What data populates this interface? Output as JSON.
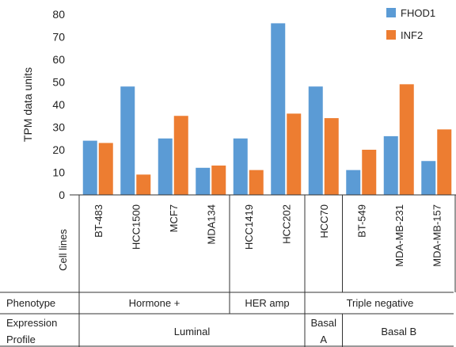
{
  "chart_data": {
    "type": "bar",
    "ylabel": "TPM data units",
    "ylim": [
      0,
      80
    ],
    "yticks": [
      0,
      10,
      20,
      30,
      40,
      50,
      60,
      70,
      80
    ],
    "grid": false,
    "legend_position": "top-right",
    "categories": [
      "BT-483",
      "HCC1500",
      "MCF7",
      "MDA134",
      "HCC1419",
      "HCC202",
      "HCC70",
      "BT-549",
      "MDA-MB-231",
      "MDA-MB-157"
    ],
    "series": [
      {
        "name": "FHOD1",
        "color": "#5B9BD5",
        "values": [
          24,
          48,
          25,
          12,
          25,
          76,
          48,
          11,
          26,
          15
        ]
      },
      {
        "name": "INF2",
        "color": "#ED7D31",
        "values": [
          23,
          9,
          35,
          13,
          11,
          36,
          34,
          20,
          49,
          29
        ]
      }
    ],
    "table": {
      "cell_lines_label": "Cell lines",
      "phenotype_label": "Phenotype",
      "expression_label": [
        "Expression",
        "Profile"
      ],
      "phenotype_groups": [
        {
          "label": "Hormone +",
          "span": 4
        },
        {
          "label": "HER amp",
          "span": 2
        },
        {
          "label": "Triple negative",
          "span": 4
        }
      ],
      "expression_groups": [
        {
          "label": "Luminal",
          "span": 6
        },
        {
          "label": [
            "Basal",
            "A"
          ],
          "span": 1
        },
        {
          "label": "Basal B",
          "span": 3
        }
      ]
    }
  }
}
